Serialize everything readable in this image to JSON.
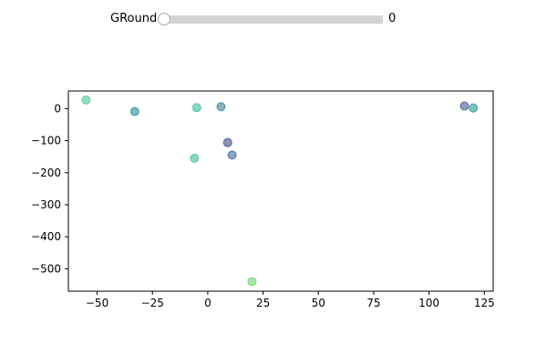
{
  "slider": {
    "label": "GRound",
    "value": "0",
    "level": 0.0,
    "track_color": "#d3d3d3"
  },
  "chart_data": {
    "type": "scatter",
    "title": "",
    "xlabel": "",
    "ylabel": "",
    "xlim": [
      -63,
      129
    ],
    "ylim": [
      -570,
      55
    ],
    "xticks": [
      -50,
      -25,
      0,
      25,
      50,
      75,
      100,
      125
    ],
    "yticks": [
      0,
      -100,
      -200,
      -300,
      -400,
      -500
    ],
    "xtick_labels": [
      "−50",
      "−25",
      "0",
      "25",
      "50",
      "75",
      "100",
      "125"
    ],
    "ytick_labels": [
      "0",
      "−100",
      "−200",
      "−300",
      "−400",
      "−500"
    ],
    "grid": false,
    "points": [
      {
        "x": -55,
        "y": 27,
        "color": "#4fc78e"
      },
      {
        "x": -33,
        "y": -9,
        "color": "#2a8a94"
      },
      {
        "x": -5,
        "y": 3,
        "color": "#3bbc9a"
      },
      {
        "x": 6,
        "y": 6,
        "color": "#3f7f9a"
      },
      {
        "x": 9,
        "y": -106,
        "color": "#3f4a8a"
      },
      {
        "x": 11,
        "y": -145,
        "color": "#3a6a9a"
      },
      {
        "x": -6,
        "y": -155,
        "color": "#3bbc9a"
      },
      {
        "x": 20,
        "y": -540,
        "color": "#6fd26a"
      },
      {
        "x": 116,
        "y": 8,
        "color": "#4a5a8f"
      },
      {
        "x": 120,
        "y": 2,
        "color": "#2a9a9a"
      }
    ]
  }
}
